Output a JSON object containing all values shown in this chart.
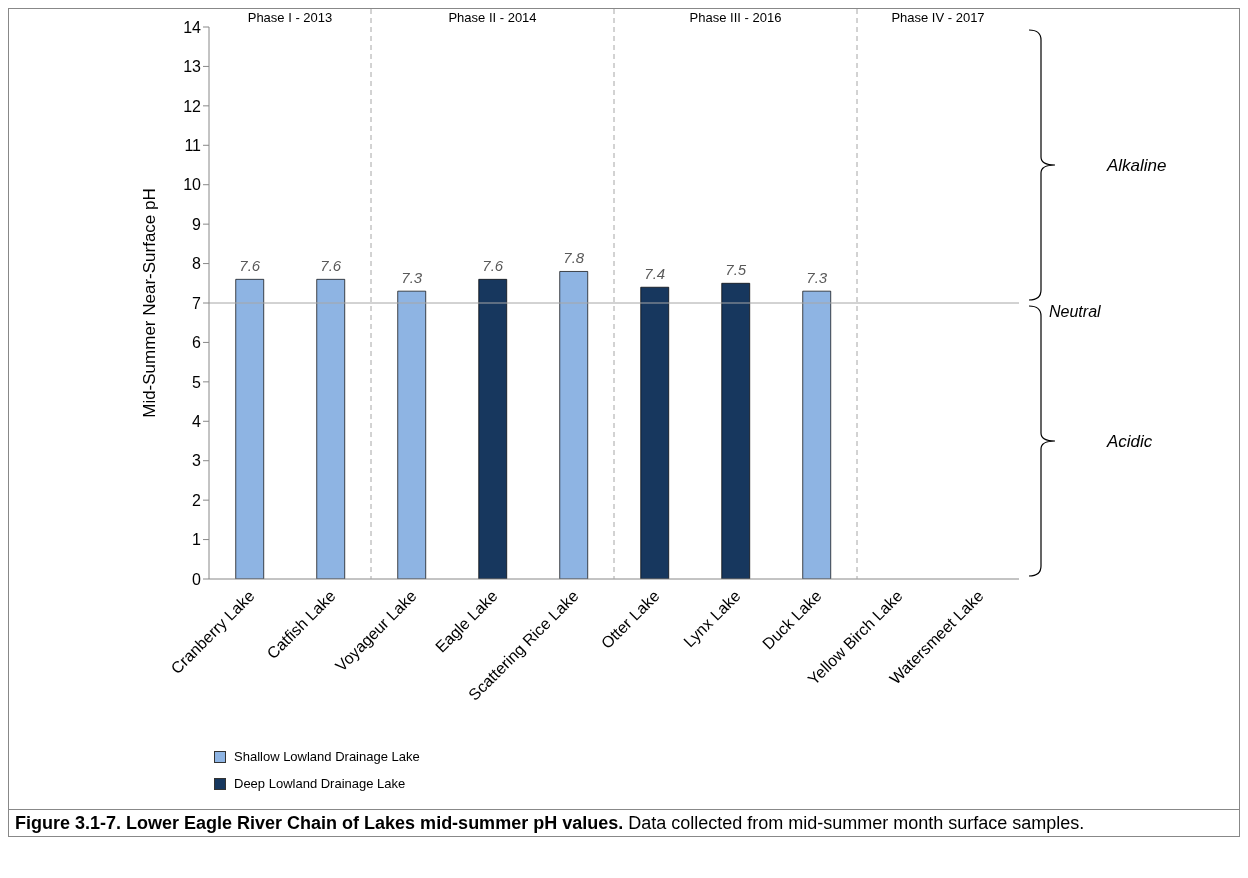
{
  "chart_data": {
    "type": "bar",
    "ylabel": "Mid-Summer Near-Surface pH",
    "categories": [
      "Cranberry Lake",
      "Catfish Lake",
      "Voyageur Lake",
      "Eagle Lake",
      "Scattering Rice Lake",
      "Otter Lake",
      "Lynx Lake",
      "Duck Lake",
      "Yellow Birch Lake",
      "Watersmeet Lake"
    ],
    "series": [
      {
        "name": "Shallow Lowland Drainage Lake",
        "color": "#8eb4e3",
        "values": [
          7.6,
          7.6,
          7.3,
          null,
          7.8,
          null,
          null,
          7.3,
          null,
          null
        ]
      },
      {
        "name": "Deep Lowland Drainage Lake",
        "color": "#17375e",
        "values": [
          null,
          null,
          null,
          7.6,
          null,
          7.4,
          7.5,
          null,
          null,
          null
        ]
      }
    ],
    "stacked": true,
    "data_labels": true,
    "ylim": [
      0,
      14
    ],
    "yticks": [
      0,
      1,
      2,
      3,
      4,
      5,
      6,
      7,
      8,
      9,
      10,
      11,
      12,
      13,
      14
    ],
    "ref_lines": [
      {
        "axis": "y",
        "value": 7,
        "label": "Neutral",
        "color": "#a6a6a6",
        "line_style": "solid"
      }
    ],
    "legend": "bottom left",
    "annotations": [
      "Phase I - 2013",
      "Phase II - 2014",
      "Phase III - 2016",
      "Phase IV - 2017",
      "Alkaline",
      "Acidic",
      "Figure 3.1-7.  Lower Eagle River Chain of Lakes mid-summer pH values.",
      "Data collected from mid-summer month surface samples."
    ]
  }
}
